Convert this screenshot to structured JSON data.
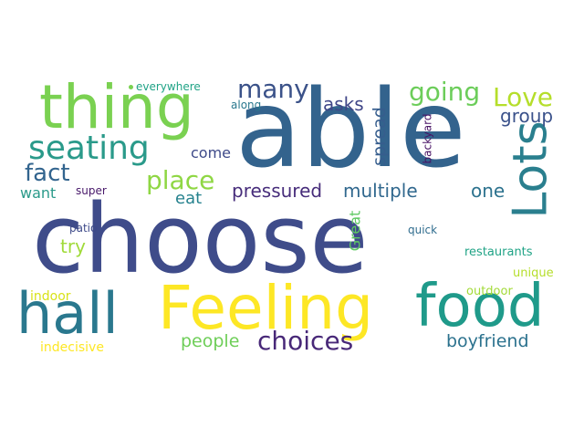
{
  "words": [
    {
      "text": "choose",
      "color": "#3f4c8a"
    },
    {
      "text": "able",
      "color": "#33638d"
    },
    {
      "text": "thing",
      "color": "#7ad151"
    },
    {
      "text": "Feeling",
      "color": "#fde725"
    },
    {
      "text": "food",
      "color": "#1f9a8a"
    },
    {
      "text": "hall",
      "color": "#2a788e"
    },
    {
      "text": "Lots",
      "color": "#2a7f8e"
    },
    {
      "text": "seating",
      "color": "#2a9a8a"
    },
    {
      "text": "many",
      "color": "#3b5289"
    },
    {
      "text": "going",
      "color": "#6ccd5a"
    },
    {
      "text": "Love",
      "color": "#b5de2b"
    },
    {
      "text": "fact",
      "color": "#32648e"
    },
    {
      "text": "place",
      "color": "#8fd744"
    },
    {
      "text": "choices",
      "color": "#482878"
    },
    {
      "text": "pressured",
      "color": "#472d7b"
    },
    {
      "text": "multiple",
      "color": "#31688e"
    },
    {
      "text": "group",
      "color": "#3b528b"
    },
    {
      "text": "asks",
      "color": "#404688"
    },
    {
      "text": "spread",
      "color": "#365d8d"
    },
    {
      "text": "one",
      "color": "#2c728e"
    },
    {
      "text": "boyfriend",
      "color": "#2c728e"
    },
    {
      "text": "people",
      "color": "#6ece58"
    },
    {
      "text": "try",
      "color": "#a0da39"
    },
    {
      "text": "want",
      "color": "#2a9a8a"
    },
    {
      "text": "eat",
      "color": "#26828e"
    },
    {
      "text": "come",
      "color": "#3e4a89"
    },
    {
      "text": "Great",
      "color": "#5ec962"
    },
    {
      "text": "backyard",
      "color": "#471164"
    },
    {
      "text": "restaurants",
      "color": "#20a386"
    },
    {
      "text": "unique",
      "color": "#b5de2b"
    },
    {
      "text": "outdoor",
      "color": "#a2da37"
    },
    {
      "text": "indoor",
      "color": "#d8e219"
    },
    {
      "text": "indecisive",
      "color": "#fde725"
    },
    {
      "text": "everywhere",
      "color": "#20a386"
    },
    {
      "text": "along",
      "color": "#2a788e"
    },
    {
      "text": "super",
      "color": "#48186a"
    },
    {
      "text": "patio",
      "color": "#3e4a89"
    },
    {
      "text": "quick",
      "color": "#2f6c8e"
    }
  ],
  "dots": [
    {
      "color": "#7ad151"
    }
  ]
}
